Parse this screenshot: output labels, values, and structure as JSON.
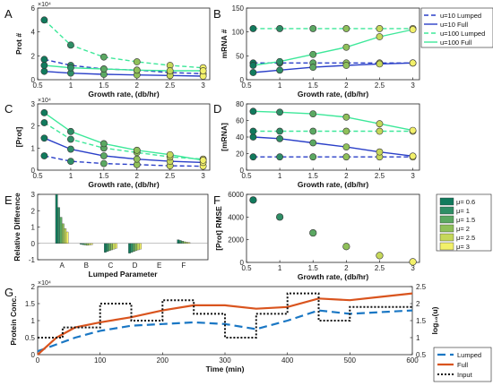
{
  "chart_data": [
    {
      "type": "line",
      "panel": "A",
      "xlabel": "Growth rate, (db/hr)",
      "ylabel": "Prot #",
      "multiplier": "×10⁴",
      "xlim": [
        0.5,
        3.1
      ],
      "ylim": [
        0,
        6
      ],
      "xticks": [
        0.5,
        1,
        1.5,
        2,
        2.5,
        3
      ],
      "xtick_labels": [
        "0.5",
        "1",
        "1.5",
        "2",
        "2.5",
        "3"
      ],
      "yticks": [
        0,
        2,
        4,
        6
      ],
      "x": [
        0.6,
        1.0,
        1.5,
        2.0,
        2.5,
        3.0
      ],
      "series": [
        {
          "name": "u=10 Lumped",
          "values": [
            1.7,
            1.2,
            0.9,
            0.8,
            0.6,
            0.5
          ]
        },
        {
          "name": "u=10 Full",
          "values": [
            0.7,
            0.55,
            0.45,
            0.4,
            0.35,
            0.3
          ]
        },
        {
          "name": "u=100 Lumped",
          "values": [
            5.0,
            2.9,
            1.9,
            1.5,
            1.2,
            1.0
          ]
        },
        {
          "name": "u=100 Full",
          "values": [
            1.2,
            1.0,
            0.9,
            0.8,
            0.75,
            0.75
          ]
        }
      ]
    },
    {
      "type": "line",
      "panel": "B",
      "xlabel": "Growth rate, (db/hr)",
      "ylabel": "mRNA #",
      "xlim": [
        0.5,
        3.1
      ],
      "ylim": [
        0,
        150
      ],
      "xticks": [
        0.5,
        1,
        1.5,
        2,
        2.5,
        3
      ],
      "xtick_labels": [
        "0.5",
        "1",
        "1.5",
        "2",
        "2.5",
        "3"
      ],
      "yticks": [
        0,
        50,
        100,
        150
      ],
      "x": [
        0.6,
        1.0,
        1.5,
        2.0,
        2.5,
        3.0
      ],
      "series": [
        {
          "name": "u=10 Lumped",
          "values": [
            35,
            35,
            35,
            35,
            35,
            35
          ]
        },
        {
          "name": "u=10 Full",
          "values": [
            15,
            20,
            26,
            30,
            33,
            35
          ]
        },
        {
          "name": "u=100 Lumped",
          "values": [
            107,
            107,
            107,
            107,
            107,
            107
          ]
        },
        {
          "name": "u=100 Full",
          "values": [
            30,
            38,
            53,
            68,
            90,
            105
          ]
        }
      ]
    },
    {
      "type": "line",
      "panel": "C",
      "xlabel": "Growth rate, (db/hr)",
      "ylabel": "[Prot]",
      "multiplier": "×10⁴",
      "xlim": [
        0.5,
        3.1
      ],
      "ylim": [
        0,
        3
      ],
      "xticks": [
        0.5,
        1,
        1.5,
        2,
        2.5,
        3
      ],
      "xtick_labels": [
        "0.5",
        "1",
        "1.5",
        "2",
        "2.5",
        "3"
      ],
      "yticks": [
        0,
        1,
        2,
        3
      ],
      "x": [
        0.6,
        1.0,
        1.5,
        2.0,
        2.5,
        3.0
      ],
      "series": [
        {
          "name": "u=10 Lumped",
          "values": [
            0.65,
            0.4,
            0.3,
            0.25,
            0.2,
            0.18
          ]
        },
        {
          "name": "u=10 Full",
          "values": [
            1.45,
            0.95,
            0.65,
            0.5,
            0.4,
            0.35
          ]
        },
        {
          "name": "u=100 Lumped",
          "values": [
            2.15,
            1.4,
            1.0,
            0.8,
            0.6,
            0.5
          ]
        },
        {
          "name": "u=100 Full",
          "values": [
            2.6,
            1.75,
            1.2,
            0.9,
            0.7,
            0.45
          ]
        }
      ]
    },
    {
      "type": "line",
      "panel": "D",
      "xlabel": "Growth rate, (db/hr)",
      "ylabel": "[mRNA]",
      "xlim": [
        0.5,
        3.1
      ],
      "ylim": [
        0,
        80
      ],
      "xticks": [
        0.5,
        1,
        1.5,
        2,
        2.5,
        3
      ],
      "xtick_labels": [
        "0.5",
        "1",
        "1.5",
        "2",
        "2.5",
        "3"
      ],
      "yticks": [
        0,
        20,
        40,
        60,
        80
      ],
      "x": [
        0.6,
        1.0,
        1.5,
        2.0,
        2.5,
        3.0
      ],
      "series": [
        {
          "name": "u=10 Lumped",
          "values": [
            16,
            16,
            16,
            16,
            16,
            16
          ]
        },
        {
          "name": "u=10 Full",
          "values": [
            40,
            38,
            33,
            28,
            22,
            17
          ]
        },
        {
          "name": "u=100 Lumped",
          "values": [
            47,
            47,
            47,
            47,
            47,
            47
          ]
        },
        {
          "name": "u=100 Full",
          "values": [
            71,
            70,
            68,
            64,
            56,
            48
          ]
        }
      ]
    },
    {
      "type": "bar",
      "panel": "E",
      "xlabel": "Lumped Parameter",
      "ylabel": "Relative Difference",
      "ylim": [
        -1,
        3
      ],
      "yticks": [
        -1,
        0,
        1,
        2,
        3
      ],
      "categories": [
        "A",
        "B",
        "C",
        "D",
        "E",
        "F"
      ],
      "series": [
        {
          "name": "μ= 0.6",
          "values": [
            3.0,
            -0.05,
            -0.55,
            -0.6,
            0.0,
            0.22
          ]
        },
        {
          "name": "μ= 1",
          "values": [
            2.2,
            -0.08,
            -0.5,
            -0.55,
            0.0,
            0.18
          ]
        },
        {
          "name": "μ= 1.5",
          "values": [
            1.6,
            -0.1,
            -0.45,
            -0.5,
            0.0,
            0.14
          ]
        },
        {
          "name": "μ= 2",
          "values": [
            1.2,
            -0.12,
            -0.4,
            -0.45,
            0.0,
            0.1
          ]
        },
        {
          "name": "μ= 2.5",
          "values": [
            0.9,
            -0.1,
            -0.35,
            -0.4,
            0.0,
            0.07
          ]
        },
        {
          "name": "μ= 3",
          "values": [
            0.7,
            -0.08,
            -0.3,
            -0.35,
            0.0,
            0.05
          ]
        }
      ]
    },
    {
      "type": "scatter",
      "panel": "F",
      "xlabel": "Growth rate, (db/hr)",
      "ylabel": "[Prot] RMSE",
      "xlim": [
        0.5,
        3.1
      ],
      "ylim": [
        0,
        6000
      ],
      "xticks": [
        0.5,
        1,
        1.5,
        2,
        2.5,
        3
      ],
      "xtick_labels": [
        "0.5",
        "1",
        "1.5",
        "2",
        "2.5",
        "3"
      ],
      "yticks": [
        0,
        2000,
        4000,
        6000
      ],
      "x": [
        0.6,
        1.0,
        1.5,
        2.0,
        2.5,
        3.0
      ],
      "values": [
        5500,
        4000,
        2600,
        1400,
        600,
        50
      ]
    },
    {
      "type": "line",
      "panel": "G",
      "xlabel": "Time (min)",
      "ylabel": "Protein Conc.",
      "ylabel_right": "log₁₀(u)",
      "multiplier": "×10⁴",
      "xlim": [
        0,
        600
      ],
      "ylim": [
        0,
        2
      ],
      "ylim_right": [
        0.5,
        2.5
      ],
      "xticks": [
        0,
        100,
        200,
        300,
        400,
        500,
        600
      ],
      "yticks": [
        0,
        0.5,
        1,
        1.5,
        2
      ],
      "yticks_right": [
        0.5,
        1,
        1.5,
        2,
        2.5
      ],
      "series": [
        {
          "name": "Lumped",
          "x": [
            0,
            30,
            60,
            100,
            150,
            200,
            250,
            300,
            350,
            400,
            450,
            500,
            550,
            600
          ],
          "values": [
            0.1,
            0.3,
            0.5,
            0.7,
            0.85,
            0.9,
            0.95,
            0.9,
            0.75,
            1.0,
            1.3,
            1.2,
            1.25,
            1.3
          ]
        },
        {
          "name": "Full",
          "x": [
            0,
            30,
            60,
            100,
            150,
            200,
            250,
            300,
            350,
            400,
            450,
            500,
            550,
            600
          ],
          "values": [
            0.0,
            0.5,
            0.8,
            0.95,
            1.1,
            1.3,
            1.45,
            1.45,
            1.35,
            1.4,
            1.65,
            1.6,
            1.7,
            1.8
          ]
        },
        {
          "name": "Input",
          "axis": "right",
          "x": [
            0,
            40,
            40,
            100,
            100,
            150,
            150,
            200,
            200,
            250,
            250,
            300,
            300,
            350,
            350,
            400,
            400,
            450,
            450,
            500,
            500,
            550,
            550,
            600
          ],
          "values": [
            1.0,
            1.0,
            1.3,
            1.3,
            2.0,
            2.0,
            1.5,
            1.5,
            2.1,
            2.1,
            1.7,
            1.7,
            1.0,
            1.0,
            1.7,
            1.7,
            2.3,
            2.3,
            1.5,
            1.5,
            1.9,
            1.9,
            1.9,
            1.9
          ]
        }
      ]
    }
  ]
}
